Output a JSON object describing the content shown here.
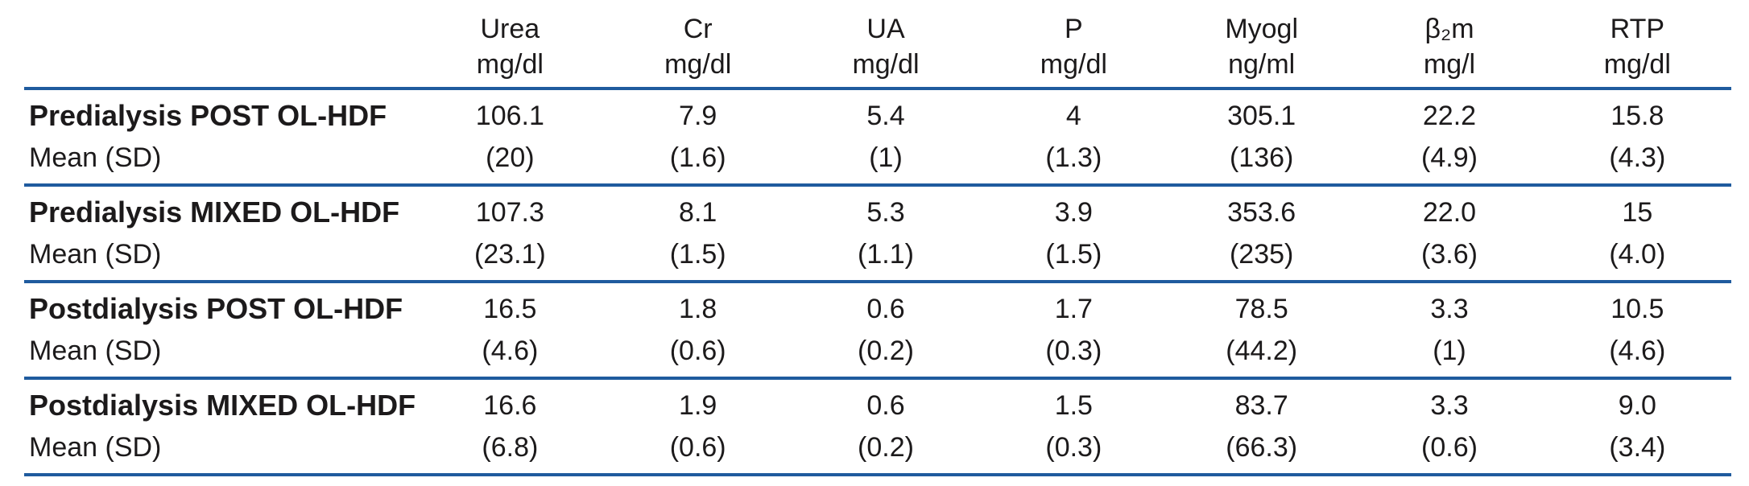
{
  "table": {
    "rule_color": "#1f5b9e",
    "text_color": "#1c1a1b",
    "columns": [
      {
        "name": "Urea",
        "unit": "mg/dl"
      },
      {
        "name": "Cr",
        "unit": "mg/dl"
      },
      {
        "name": "UA",
        "unit": "mg/dl"
      },
      {
        "name": "P",
        "unit": "mg/dl"
      },
      {
        "name": "Myogl",
        "unit": "ng/ml"
      },
      {
        "name": "β₂m",
        "unit": "mg/l"
      },
      {
        "name": "RTP",
        "unit": "mg/dl"
      }
    ],
    "rows": [
      {
        "label": "Predialysis POST OL-HDF",
        "sublabel": "Mean (SD)",
        "means": [
          "106.1",
          "7.9",
          "5.4",
          "4",
          "305.1",
          "22.2",
          "15.8"
        ],
        "sds": [
          "(20)",
          "(1.6)",
          "(1)",
          "(1.3)",
          "(136)",
          "(4.9)",
          "(4.3)"
        ]
      },
      {
        "label": "Predialysis MIXED OL-HDF",
        "sublabel": "Mean (SD)",
        "means": [
          "107.3",
          "8.1",
          "5.3",
          "3.9",
          "353.6",
          "22.0",
          "15"
        ],
        "sds": [
          "(23.1)",
          "(1.5)",
          "(1.1)",
          "(1.5)",
          "(235)",
          "(3.6)",
          "(4.0)"
        ]
      },
      {
        "label": "Postdialysis POST OL-HDF",
        "sublabel": "Mean (SD)",
        "means": [
          "16.5",
          "1.8",
          "0.6",
          "1.7",
          "78.5",
          "3.3",
          "10.5"
        ],
        "sds": [
          "(4.6)",
          "(0.6)",
          "(0.2)",
          "(0.3)",
          "(44.2)",
          "(1)",
          "(4.6)"
        ]
      },
      {
        "label": "Postdialysis MIXED OL-HDF",
        "sublabel": "Mean (SD)",
        "means": [
          "16.6",
          "1.9",
          "0.6",
          "1.5",
          "83.7",
          "3.3",
          "9.0"
        ],
        "sds": [
          "(6.8)",
          "(0.6)",
          "(0.2)",
          "(0.3)",
          "(66.3)",
          "(0.6)",
          "(3.4)"
        ]
      }
    ]
  }
}
